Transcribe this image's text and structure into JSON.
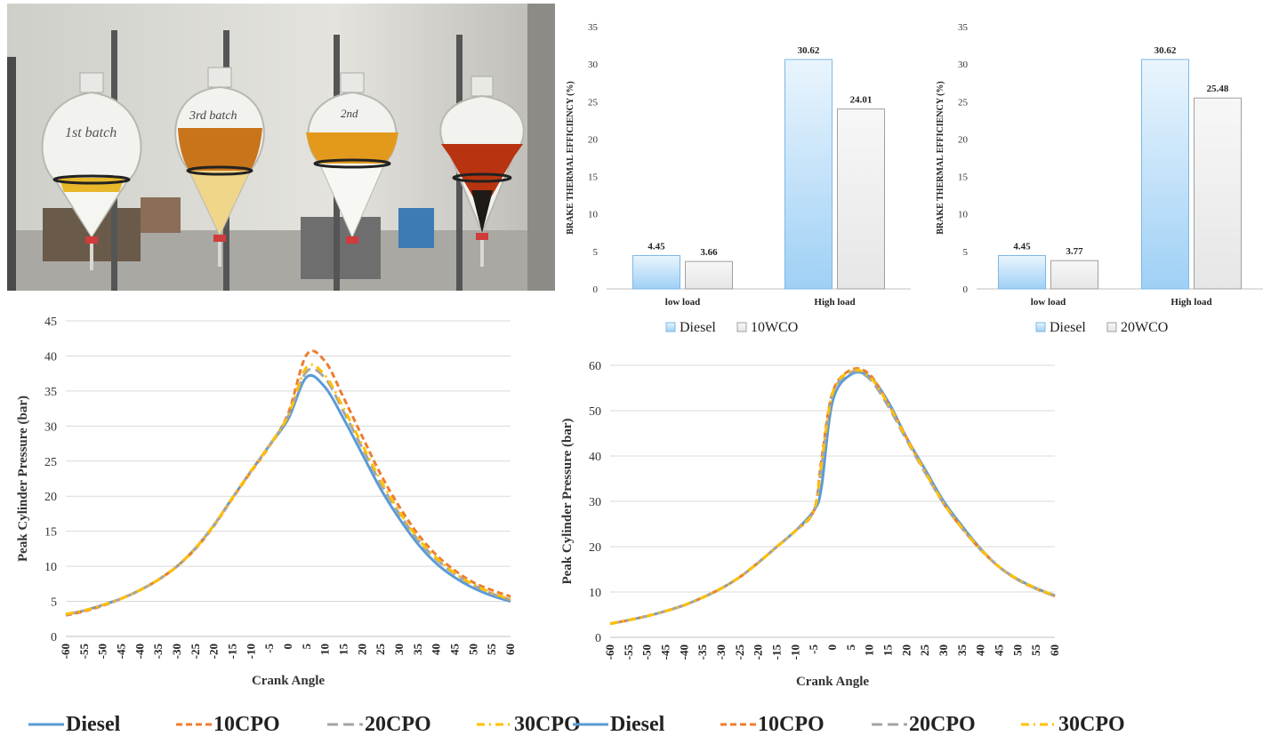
{
  "photo": {
    "labels": [
      "1st batch",
      "3rd batch",
      "2nd"
    ]
  },
  "chart_data": [
    {
      "type": "bar",
      "ylabel": "BRAKE THERMAL EFFICIENCY (%)",
      "categories": [
        "low load",
        "High load"
      ],
      "ylim": [
        0,
        35
      ],
      "yticks": [
        0,
        5,
        10,
        15,
        20,
        25,
        30,
        35
      ],
      "legend_position": "bottom",
      "grid": false,
      "series": [
        {
          "name": "Diesel",
          "values": [
            4.45,
            30.62
          ],
          "color": "#9fd0f5"
        },
        {
          "name": "10WCO",
          "values": [
            3.66,
            24.01
          ],
          "color": "#e6e6e6"
        }
      ],
      "data_labels": [
        [
          "4.45",
          "30.62"
        ],
        [
          "3.66",
          "24.01"
        ]
      ]
    },
    {
      "type": "bar",
      "ylabel": "BRAKE THERMAL EFFICIENCY (%)",
      "categories": [
        "low load",
        "High load"
      ],
      "ylim": [
        0,
        35
      ],
      "yticks": [
        0,
        5,
        10,
        15,
        20,
        25,
        30,
        35
      ],
      "legend_position": "bottom",
      "grid": false,
      "series": [
        {
          "name": "Diesel",
          "values": [
            4.45,
            30.62
          ],
          "color": "#9fd0f5"
        },
        {
          "name": "20WCO",
          "values": [
            3.77,
            25.48
          ],
          "color": "#e6e6e6"
        }
      ],
      "data_labels": [
        [
          "4.45",
          "30.62"
        ],
        [
          "3.77",
          "25.48"
        ]
      ]
    },
    {
      "type": "line",
      "xlabel": "Crank Angle",
      "ylabel": "Peak Cylinder Pressure (bar)",
      "xlim": [
        -60,
        60
      ],
      "ylim": [
        0,
        45
      ],
      "xticks": [
        -60,
        -55,
        -50,
        -45,
        -40,
        -35,
        -30,
        -25,
        -20,
        -15,
        -10,
        -5,
        0,
        5,
        10,
        15,
        20,
        25,
        30,
        35,
        40,
        45,
        50,
        55,
        60
      ],
      "yticks": [
        0,
        5,
        10,
        15,
        20,
        25,
        30,
        35,
        40,
        45
      ],
      "grid": true,
      "legend_position": "bottom",
      "x": [
        -60,
        -55,
        -50,
        -45,
        -40,
        -35,
        -30,
        -25,
        -20,
        -15,
        -10,
        -5,
        0,
        5,
        10,
        15,
        20,
        25,
        30,
        35,
        40,
        45,
        50,
        55,
        60
      ],
      "series": [
        {
          "name": "Diesel",
          "color": "#5b9bd5",
          "dash": "solid",
          "values": [
            3.1,
            3.7,
            4.5,
            5.4,
            6.6,
            8.1,
            10.0,
            12.6,
            15.9,
            19.8,
            23.6,
            27.3,
            31.0,
            37.0,
            35.5,
            31.0,
            26.0,
            21.0,
            16.8,
            13.2,
            10.4,
            8.4,
            6.9,
            5.8,
            5.0
          ]
        },
        {
          "name": "10CPO",
          "color": "#ed7d31",
          "dash": "dash",
          "values": [
            3.0,
            3.6,
            4.4,
            5.4,
            6.6,
            8.1,
            10.0,
            12.5,
            15.8,
            19.7,
            23.5,
            27.2,
            31.8,
            40.2,
            39.2,
            34.0,
            28.5,
            23.1,
            18.5,
            14.6,
            11.6,
            9.4,
            7.7,
            6.6,
            5.7
          ]
        },
        {
          "name": "20CPO",
          "color": "#a5a5a5",
          "dash": "longdash",
          "values": [
            3.1,
            3.7,
            4.5,
            5.4,
            6.6,
            8.1,
            10.0,
            12.6,
            15.9,
            19.8,
            23.6,
            27.3,
            31.4,
            37.8,
            36.8,
            32.0,
            26.9,
            21.8,
            17.5,
            13.8,
            11.0,
            8.9,
            7.3,
            6.1,
            5.2
          ]
        },
        {
          "name": "30CPO",
          "color": "#ffc000",
          "dash": "dashdot",
          "values": [
            3.2,
            3.7,
            4.5,
            5.4,
            6.6,
            8.1,
            10.0,
            12.6,
            15.9,
            19.8,
            23.6,
            27.3,
            31.5,
            38.4,
            37.2,
            32.5,
            27.3,
            22.2,
            17.8,
            14.0,
            11.2,
            9.0,
            7.4,
            6.2,
            5.3
          ]
        }
      ]
    },
    {
      "type": "line",
      "xlabel": "Crank Angle",
      "ylabel": "Peak Cylinder Pressure (bar)",
      "xlim": [
        -60,
        60
      ],
      "ylim": [
        0,
        60
      ],
      "xticks": [
        -60,
        -55,
        -50,
        -45,
        -40,
        -35,
        -30,
        -25,
        -20,
        -15,
        -10,
        -5,
        0,
        5,
        10,
        15,
        20,
        25,
        30,
        35,
        40,
        45,
        50,
        55,
        60
      ],
      "yticks": [
        0,
        10,
        20,
        30,
        40,
        50,
        60
      ],
      "grid": true,
      "legend_position": "bottom",
      "x": [
        -60,
        -55,
        -50,
        -45,
        -40,
        -35,
        -30,
        -25,
        -20,
        -15,
        -10,
        -5,
        -3,
        0,
        5,
        10,
        15,
        20,
        25,
        30,
        35,
        40,
        45,
        50,
        55,
        60
      ],
      "series": [
        {
          "name": "Diesel",
          "color": "#5b9bd5",
          "dash": "solid",
          "values": [
            3.0,
            3.8,
            4.7,
            5.8,
            7.1,
            8.8,
            10.8,
            13.3,
            16.5,
            20.0,
            23.5,
            28.0,
            33.0,
            52.0,
            58.0,
            57.5,
            52.0,
            44.0,
            37.0,
            30.0,
            24.5,
            19.5,
            15.5,
            12.8,
            10.8,
            9.2
          ]
        },
        {
          "name": "10CPO",
          "color": "#ed7d31",
          "dash": "dash",
          "values": [
            3.0,
            3.8,
            4.7,
            5.8,
            7.1,
            8.8,
            10.8,
            13.3,
            16.5,
            20.0,
            23.5,
            28.0,
            39.0,
            54.0,
            59.0,
            58.0,
            51.5,
            44.0,
            36.5,
            29.5,
            24.0,
            19.3,
            15.5,
            12.7,
            10.7,
            9.1
          ]
        },
        {
          "name": "20CPO",
          "color": "#a5a5a5",
          "dash": "longdash",
          "values": [
            3.0,
            3.8,
            4.7,
            5.8,
            7.1,
            8.8,
            10.8,
            13.3,
            16.5,
            20.0,
            23.5,
            28.0,
            37.5,
            53.5,
            58.5,
            57.0,
            51.0,
            43.5,
            36.3,
            29.5,
            24.0,
            19.3,
            15.5,
            12.7,
            10.7,
            9.1
          ]
        },
        {
          "name": "30CPO",
          "color": "#ffc000",
          "dash": "dashdot",
          "values": [
            3.0,
            3.8,
            4.7,
            5.8,
            7.1,
            8.8,
            10.8,
            13.3,
            16.5,
            20.0,
            23.5,
            28.0,
            38.0,
            53.8,
            58.8,
            57.5,
            51.5,
            43.8,
            36.5,
            29.6,
            24.1,
            19.4,
            15.5,
            12.8,
            10.8,
            9.2
          ]
        }
      ]
    }
  ]
}
